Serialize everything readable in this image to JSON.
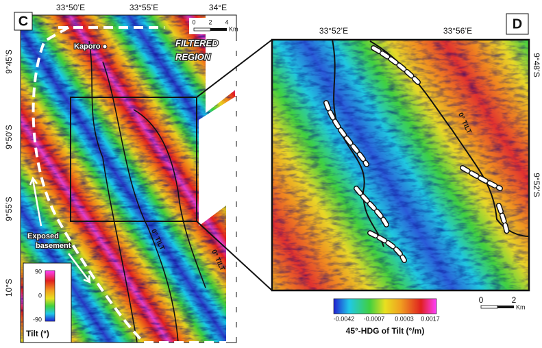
{
  "panel_c": {
    "label": "C",
    "lon_ticks": [
      "33°50’E",
      "33°55’E",
      "34°E"
    ],
    "lat_ticks": [
      "9°45’S",
      "9°50’S",
      "9°55’S",
      "10°S"
    ],
    "scale": {
      "ticks": [
        "0",
        "2",
        "4"
      ],
      "unit": "Km"
    },
    "place": "Kaporo",
    "filtered_region": [
      "FILTERED",
      "REGION"
    ],
    "exposed_basement": [
      "Exposed",
      "basement"
    ],
    "tilt_labels": [
      "0° TILT",
      "0° TILT"
    ],
    "colorbar": {
      "ticks": [
        "90",
        "0",
        "-90"
      ],
      "title": "Tilt (°)"
    }
  },
  "panel_d": {
    "label": "D",
    "lon_ticks": [
      "33°52’E",
      "33°56’E"
    ],
    "lat_ticks": [
      "9°48’S",
      "9°52’S"
    ],
    "tilt_label": "0° TILT",
    "scale": {
      "ticks": [
        "0",
        "2"
      ],
      "unit": "Km"
    },
    "colorbar": {
      "ticks": [
        "-0.0042",
        "-0.0007",
        "0.0003",
        "0.0017"
      ],
      "title": "45°-HDG of Tilt (°/m)"
    }
  }
}
